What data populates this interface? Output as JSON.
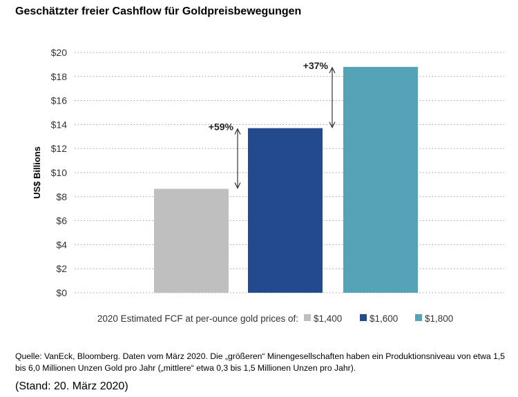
{
  "title": "Geschätzter freier Cashflow für Goldpreisbewegungen",
  "source_note": "Quelle: VanEck, Bloomberg. Daten vom März 2020. Die „größeren“ Minengesellschaften haben ein Produktionsniveau von etwa 1,5 bis 6,0 Millionen Unzen Gold pro Jahr („mittlere“ etwa 0,3 bis 1,5 Millionen Unzen pro Jahr).",
  "stand": "(Stand: 20. März 2020)",
  "chart_data": {
    "type": "bar",
    "ylabel": "US$ Billions",
    "ylim": [
      0,
      20
    ],
    "yticks": [
      0,
      2,
      4,
      6,
      8,
      10,
      12,
      14,
      16,
      18,
      20
    ],
    "ytick_labels": [
      "$0",
      "$2",
      "$4",
      "$6",
      "$8",
      "$10",
      "$12",
      "$14",
      "$16",
      "$18",
      "$20"
    ],
    "grid": true,
    "categories": [
      "$1,400",
      "$1,600",
      "$1,800"
    ],
    "values": [
      8.65,
      13.7,
      18.8
    ],
    "colors": [
      "#bfbfbf",
      "#234a8c",
      "#55a3b6"
    ],
    "legend_title": "2020 Estimated FCF at per-ounce gold prices of:",
    "legend_placement": "bottom",
    "annotations": [
      {
        "label": "+59%",
        "from": 0,
        "to": 1
      },
      {
        "label": "+37%",
        "from": 1,
        "to": 2
      }
    ]
  }
}
